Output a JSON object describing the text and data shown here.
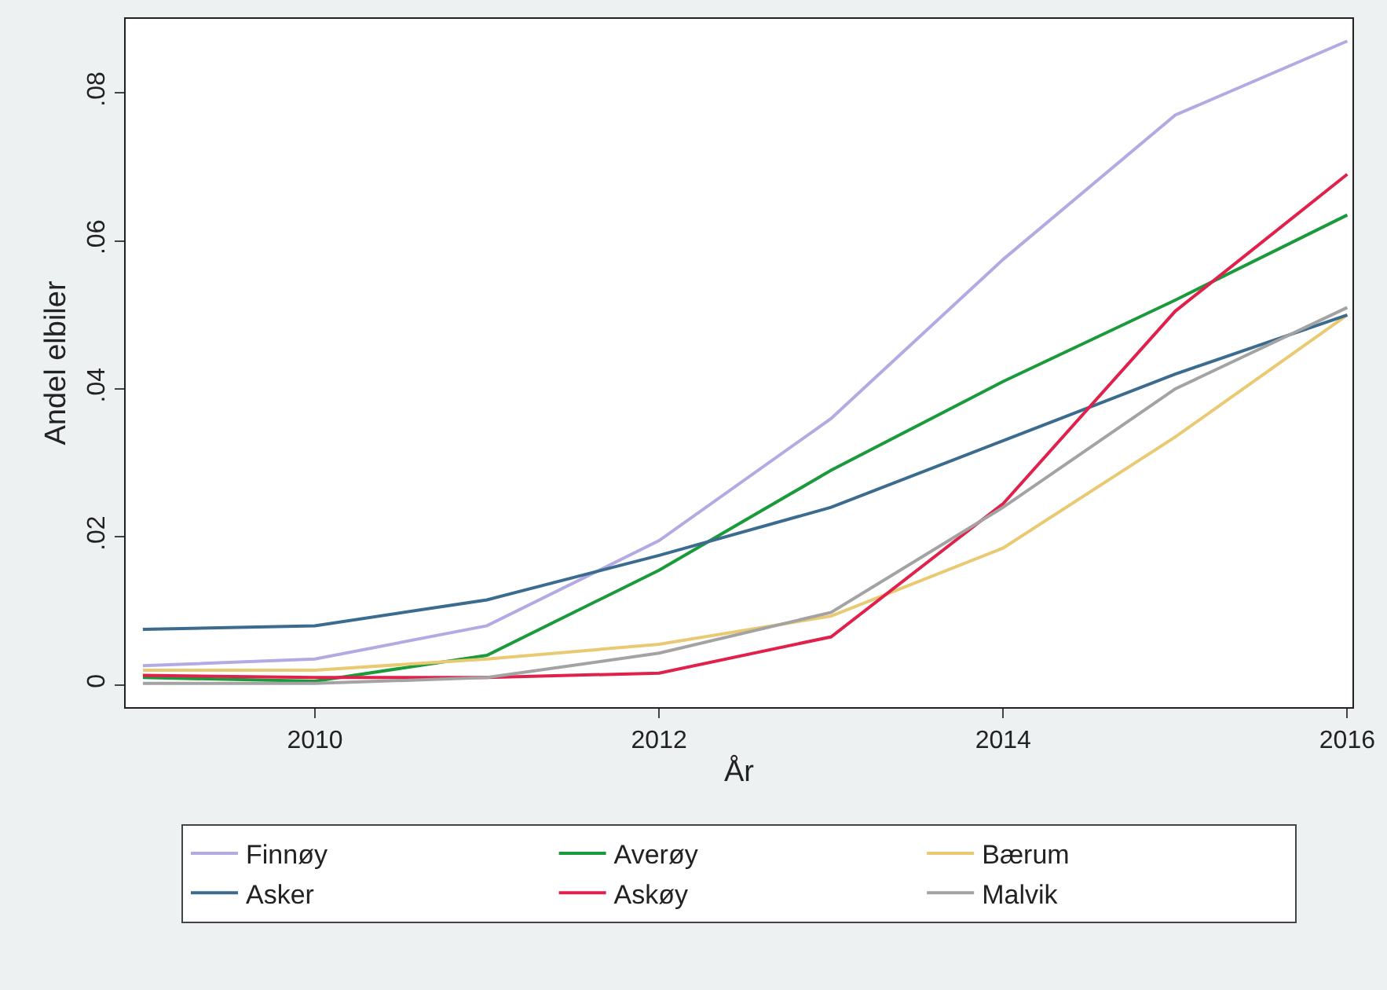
{
  "chart_data": {
    "type": "line",
    "xlabel": "År",
    "ylabel": "Andel elbiler",
    "x": [
      2009,
      2010,
      2011,
      2012,
      2013,
      2014,
      2015,
      2016
    ],
    "series": [
      {
        "name": "Finnøy",
        "color": "#b3aae3",
        "values": [
          0.0026,
          0.0035,
          0.008,
          0.0195,
          0.036,
          0.0575,
          0.077,
          0.087
        ]
      },
      {
        "name": "Averøy",
        "color": "#1b9a3c",
        "values": [
          0.001,
          0.0005,
          0.004,
          0.0155,
          0.029,
          0.041,
          0.052,
          0.0635
        ]
      },
      {
        "name": "Bærum",
        "color": "#e9c972",
        "values": [
          0.002,
          0.002,
          0.0035,
          0.0055,
          0.0093,
          0.0185,
          0.0335,
          0.05
        ]
      },
      {
        "name": "Asker",
        "color": "#3b6b8f",
        "values": [
          0.0075,
          0.008,
          0.0115,
          0.0175,
          0.024,
          0.033,
          0.042,
          0.05
        ]
      },
      {
        "name": "Askøy",
        "color": "#e0214b",
        "values": [
          0.0013,
          0.001,
          0.001,
          0.0016,
          0.0065,
          0.0245,
          0.0505,
          0.069
        ]
      },
      {
        "name": "Malvik",
        "color": "#a3a3a3",
        "values": [
          0.0002,
          0.0002,
          0.001,
          0.0043,
          0.0098,
          0.024,
          0.04,
          0.051
        ]
      }
    ],
    "xlim": [
      2008.9,
      2016.03
    ],
    "xticks": [
      2010,
      2012,
      2014,
      2016
    ],
    "ylim": [
      -0.003,
      0.09
    ],
    "yticks": [
      0,
      {
        "value": 0.02,
        "label": ".02"
      },
      {
        "value": 0.04,
        "label": ".04"
      },
      {
        "value": 0.06,
        "label": ".06"
      },
      {
        "value": 0.08,
        "label": ".08"
      }
    ],
    "grid": false,
    "legend": "bottom",
    "marker": "none",
    "line_style": "solid"
  }
}
